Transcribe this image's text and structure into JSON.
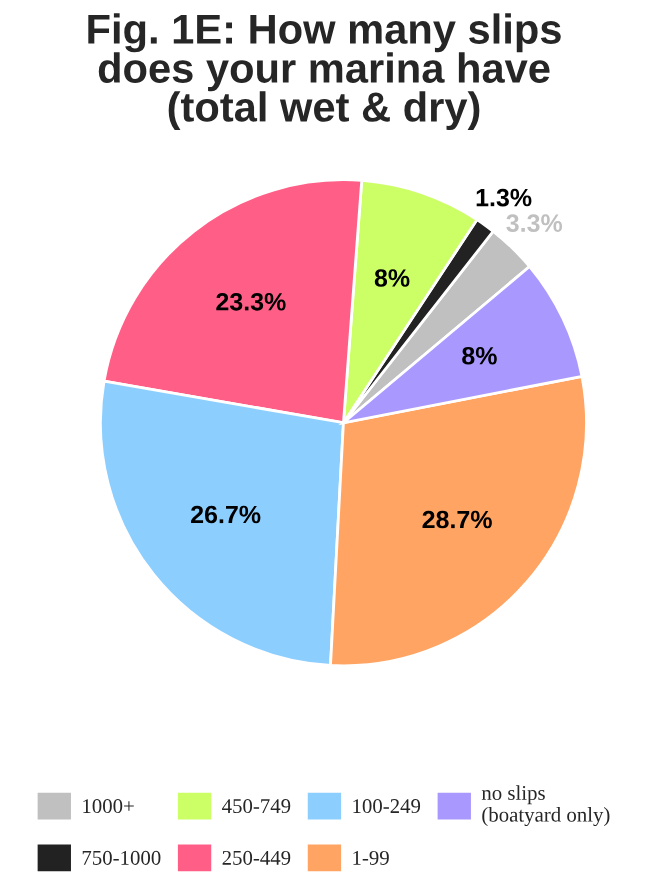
{
  "chart_data": {
    "type": "pie",
    "title": "Fig. 1E: How many slips\ndoes your marina have\n(total wet & dry)",
    "categories": [
      "1000+",
      "750-1000",
      "450-749",
      "250-449",
      "100-249",
      "1-99",
      "no slips\n(boatyard only)"
    ],
    "values": [
      3.3,
      1.3,
      8,
      23.3,
      26.7,
      28.7,
      8
    ],
    "value_labels": [
      "3.3%",
      "1.3%",
      "8%",
      "23.3%",
      "26.7%",
      "28.7%",
      "8%"
    ],
    "colors": [
      "#c0c0c0",
      "#222222",
      "#ccff66",
      "#ff5f87",
      "#8ccfff",
      "#ffa463",
      "#a999ff"
    ],
    "legend": "bottom"
  }
}
